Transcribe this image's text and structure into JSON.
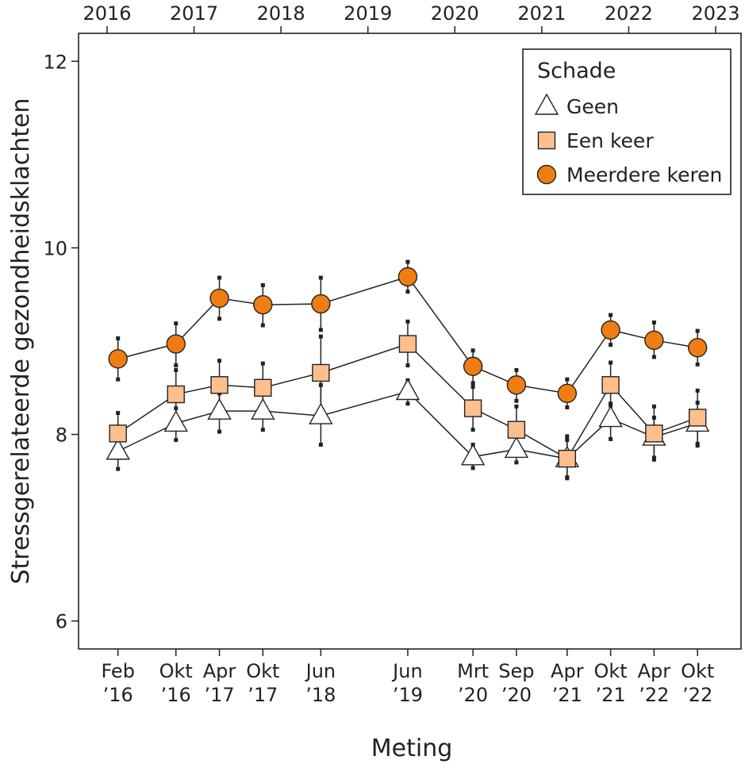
{
  "chart_data": {
    "type": "line",
    "xlabel": "Meting",
    "ylabel": "Stressgerelateerde gezondheidsklachten",
    "ylim": [
      5.7,
      12.3
    ],
    "yticks": [
      6,
      8,
      10,
      12
    ],
    "categories": [
      {
        "label": [
          "Feb",
          "’16"
        ],
        "date": "2016-02"
      },
      {
        "label": [
          "Okt",
          "’16"
        ],
        "date": "2016-10"
      },
      {
        "label": [
          "Apr",
          "’17"
        ],
        "date": "2017-04"
      },
      {
        "label": [
          "Okt",
          "’17"
        ],
        "date": "2017-10"
      },
      {
        "label": [
          "Jun",
          "’18"
        ],
        "date": "2018-06"
      },
      {
        "label": [
          "Jun",
          "’19"
        ],
        "date": "2019-06"
      },
      {
        "label": [
          "Mrt",
          "’20"
        ],
        "date": "2020-03"
      },
      {
        "label": [
          "Sep",
          "’20"
        ],
        "date": "2020-09"
      },
      {
        "label": [
          "Apr",
          "’21"
        ],
        "date": "2021-04"
      },
      {
        "label": [
          "Okt",
          "’21"
        ],
        "date": "2021-10"
      },
      {
        "label": [
          "Apr",
          "’22"
        ],
        "date": "2022-04"
      },
      {
        "label": [
          "Okt",
          "’22"
        ],
        "date": "2022-10"
      }
    ],
    "top_axis_years": [
      "2016",
      "2017",
      "2018",
      "2019",
      "2020",
      "2021",
      "2022",
      "2023"
    ],
    "legend": {
      "title": "Schade",
      "position": "top-right"
    },
    "series": [
      {
        "name": "Geen",
        "marker": "triangle",
        "fill": "#ffffff",
        "values": [
          7.82,
          8.12,
          8.25,
          8.25,
          8.2,
          8.46,
          7.76,
          7.84,
          7.74,
          8.17,
          7.97,
          8.12
        ],
        "err_low": [
          7.63,
          7.94,
          8.03,
          8.05,
          7.89,
          8.33,
          7.64,
          7.7,
          7.54,
          7.95,
          7.75,
          7.9
        ],
        "err_high": [
          7.99,
          8.28,
          8.44,
          8.44,
          8.53,
          8.58,
          7.89,
          8.02,
          7.94,
          8.33,
          8.18,
          8.34
        ]
      },
      {
        "name": "Een keer",
        "marker": "square",
        "fill": "#fdbf8e",
        "values": [
          8.01,
          8.43,
          8.53,
          8.5,
          8.66,
          8.97,
          8.28,
          8.05,
          7.74,
          8.53,
          8.01,
          8.18
        ],
        "err_low": [
          7.78,
          8.17,
          8.29,
          8.24,
          8.27,
          8.74,
          8.05,
          7.8,
          7.53,
          8.31,
          7.73,
          7.88
        ],
        "err_high": [
          8.23,
          8.69,
          8.79,
          8.76,
          9.05,
          9.21,
          8.51,
          8.3,
          7.98,
          8.77,
          8.3,
          8.47
        ]
      },
      {
        "name": "Meerdere keren",
        "marker": "circle",
        "fill": "#ef7d11",
        "values": [
          8.81,
          8.97,
          9.46,
          9.39,
          9.4,
          9.69,
          8.73,
          8.53,
          8.44,
          9.12,
          9.01,
          8.93
        ],
        "err_low": [
          8.59,
          8.74,
          9.24,
          9.17,
          9.12,
          9.53,
          8.55,
          8.36,
          8.29,
          8.96,
          8.83,
          8.75
        ],
        "err_high": [
          9.03,
          9.19,
          9.68,
          9.6,
          9.68,
          9.85,
          8.9,
          8.69,
          8.59,
          9.28,
          9.2,
          9.11
        ]
      }
    ]
  }
}
